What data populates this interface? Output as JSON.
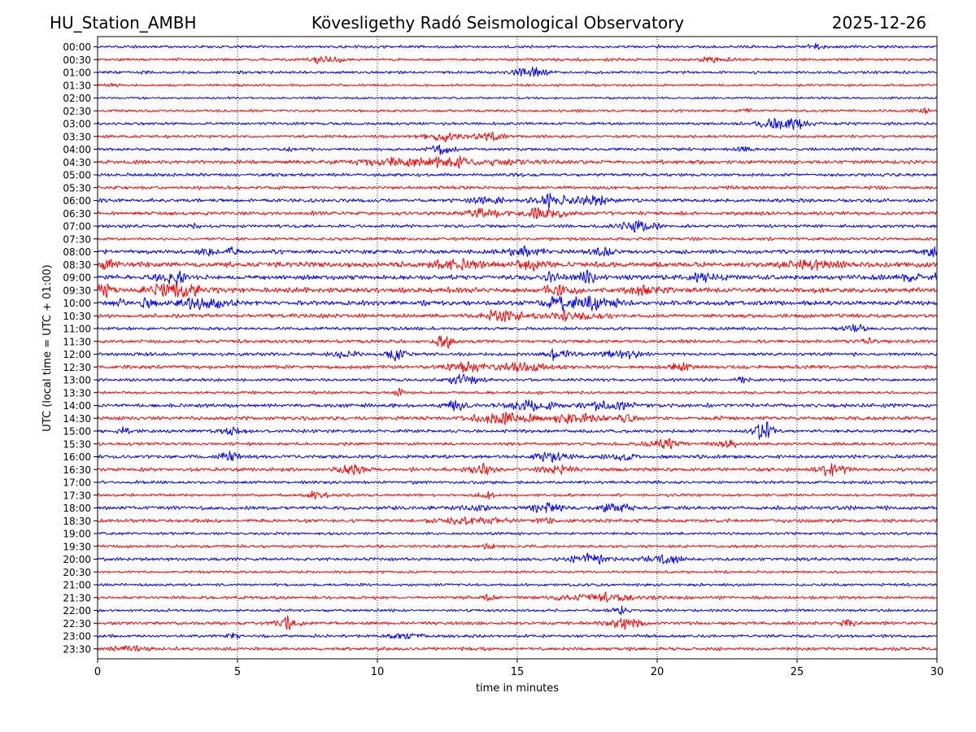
{
  "header": {
    "station": "HU_Station_AMBH",
    "title": "Kövesligethy Radó Seismological Observatory",
    "date": "2025-12-26"
  },
  "chart_data": {
    "type": "line",
    "title": "Kövesligethy Radó Seismological Observatory",
    "xlabel": "time in minutes",
    "ylabel": "UTC (local time = UTC + 01:00)",
    "xlim": [
      0,
      30
    ],
    "xticks": [
      "0",
      "5",
      "10",
      "15",
      "20",
      "25",
      "30"
    ],
    "vgrid_minutes": [
      5,
      10,
      15,
      20,
      25
    ],
    "grid_style": "dotted vertical",
    "trace_colors": [
      "#0000ff",
      "#ff0000"
    ],
    "rows": [
      {
        "label": "00:00",
        "noise": 2.2,
        "events": [
          [
            25.6,
            4,
            0.25
          ]
        ]
      },
      {
        "label": "00:30",
        "noise": 2.2,
        "events": [
          [
            8.0,
            5,
            0.7
          ],
          [
            22.0,
            4,
            0.6
          ]
        ]
      },
      {
        "label": "01:00",
        "noise": 2.2,
        "events": [
          [
            15.4,
            8,
            0.6
          ]
        ]
      },
      {
        "label": "01:30",
        "noise": 2.0,
        "events": [
          [
            0.5,
            3,
            0.3
          ]
        ]
      },
      {
        "label": "02:00",
        "noise": 1.8,
        "events": []
      },
      {
        "label": "02:30",
        "noise": 2.0,
        "events": [
          [
            23.2,
            3,
            0.2
          ],
          [
            29.5,
            3,
            0.2
          ]
        ]
      },
      {
        "label": "03:00",
        "noise": 2.2,
        "events": [
          [
            24.6,
            10,
            0.9
          ]
        ]
      },
      {
        "label": "03:30",
        "noise": 2.2,
        "events": [
          [
            12.3,
            7,
            0.7
          ],
          [
            14.0,
            5,
            0.5
          ]
        ]
      },
      {
        "label": "04:00",
        "noise": 2.4,
        "events": [
          [
            12.3,
            6,
            0.4
          ],
          [
            23.2,
            4,
            0.3
          ],
          [
            6.9,
            3,
            0.15
          ]
        ]
      },
      {
        "label": "04:30",
        "noise": 3.0,
        "events": [
          [
            12.0,
            7,
            2.5
          ]
        ]
      },
      {
        "label": "05:00",
        "noise": 2.6,
        "events": []
      },
      {
        "label": "05:30",
        "noise": 2.6,
        "events": []
      },
      {
        "label": "06:00",
        "noise": 3.0,
        "events": [
          [
            16.3,
            8,
            0.7
          ],
          [
            17.8,
            7,
            0.6
          ],
          [
            14.0,
            4,
            0.5
          ]
        ]
      },
      {
        "label": "06:30",
        "noise": 3.0,
        "events": [
          [
            13.8,
            8,
            0.6
          ],
          [
            16.0,
            7,
            0.8
          ]
        ]
      },
      {
        "label": "07:00",
        "noise": 2.6,
        "events": [
          [
            19.2,
            7,
            0.7
          ],
          [
            3.5,
            3,
            0.2
          ]
        ]
      },
      {
        "label": "07:30",
        "noise": 2.4,
        "events": []
      },
      {
        "label": "08:00",
        "noise": 3.2,
        "events": [
          [
            15.3,
            7,
            0.6
          ],
          [
            4.8,
            6,
            0.2
          ],
          [
            3.9,
            5,
            0.3
          ],
          [
            29.8,
            8,
            0.3
          ],
          [
            18.0,
            5,
            0.5
          ]
        ]
      },
      {
        "label": "08:30",
        "noise": 4.2,
        "events": [
          [
            0.3,
            8,
            0.3
          ],
          [
            12.8,
            6,
            0.9
          ],
          [
            15.5,
            6,
            0.6
          ],
          [
            25.5,
            5,
            1.2
          ]
        ]
      },
      {
        "label": "09:00",
        "noise": 3.8,
        "events": [
          [
            2.7,
            9,
            0.5
          ],
          [
            16.3,
            9,
            0.3
          ],
          [
            17.5,
            10,
            0.3
          ],
          [
            21.8,
            6,
            0.6
          ],
          [
            29.0,
            6,
            0.4
          ],
          [
            29.9,
            8,
            0.2
          ]
        ]
      },
      {
        "label": "09:30",
        "noise": 4.0,
        "events": [
          [
            0.2,
            10,
            0.3
          ],
          [
            2.8,
            9,
            1.0
          ],
          [
            16.5,
            6,
            0.6
          ],
          [
            19.5,
            5,
            0.6
          ]
        ]
      },
      {
        "label": "10:00",
        "noise": 3.6,
        "events": [
          [
            3.8,
            9,
            1.0
          ],
          [
            1.8,
            7,
            0.3
          ],
          [
            17.5,
            11,
            0.9
          ],
          [
            16.4,
            7,
            0.5
          ],
          [
            0.8,
            6,
            0.2
          ]
        ]
      },
      {
        "label": "10:30",
        "noise": 3.0,
        "events": [
          [
            14.5,
            7,
            0.8
          ],
          [
            17.0,
            6,
            1.0
          ]
        ]
      },
      {
        "label": "11:00",
        "noise": 2.4,
        "events": [
          [
            27.0,
            7,
            0.4
          ]
        ]
      },
      {
        "label": "11:30",
        "noise": 2.6,
        "events": [
          [
            12.4,
            10,
            0.3
          ],
          [
            27.5,
            3,
            0.4
          ]
        ]
      },
      {
        "label": "12:00",
        "noise": 2.6,
        "events": [
          [
            10.7,
            10,
            0.3
          ],
          [
            16.5,
            8,
            0.5
          ],
          [
            18.7,
            7,
            0.6
          ],
          [
            8.8,
            5,
            0.5
          ]
        ]
      },
      {
        "label": "12:30",
        "noise": 2.8,
        "events": [
          [
            13.2,
            7,
            0.8
          ],
          [
            15.2,
            7,
            0.8
          ],
          [
            20.9,
            7,
            0.4
          ]
        ]
      },
      {
        "label": "13:00",
        "noise": 2.4,
        "events": [
          [
            13.1,
            9,
            0.5
          ],
          [
            23.0,
            4,
            0.2
          ]
        ]
      },
      {
        "label": "13:30",
        "noise": 2.2,
        "events": [
          [
            10.8,
            5,
            0.2
          ]
        ]
      },
      {
        "label": "14:00",
        "noise": 3.0,
        "events": [
          [
            12.8,
            7,
            0.4
          ],
          [
            15.5,
            8,
            0.8
          ],
          [
            18.2,
            8,
            0.8
          ]
        ]
      },
      {
        "label": "14:30",
        "noise": 3.0,
        "events": [
          [
            14.5,
            8,
            1.0
          ],
          [
            17.0,
            6,
            1.0
          ],
          [
            19.0,
            8,
            0.3
          ]
        ]
      },
      {
        "label": "15:00",
        "noise": 2.6,
        "events": [
          [
            23.8,
            14,
            0.4
          ],
          [
            4.8,
            7,
            0.4
          ],
          [
            0.9,
            5,
            0.2
          ]
        ]
      },
      {
        "label": "15:30",
        "noise": 2.4,
        "events": [
          [
            20.3,
            7,
            0.6
          ],
          [
            22.5,
            4,
            0.5
          ]
        ]
      },
      {
        "label": "16:00",
        "noise": 2.8,
        "events": [
          [
            4.7,
            8,
            0.3
          ],
          [
            16.2,
            7,
            0.6
          ],
          [
            18.8,
            6,
            0.6
          ]
        ]
      },
      {
        "label": "16:30",
        "noise": 2.8,
        "events": [
          [
            9.0,
            8,
            0.5
          ],
          [
            13.8,
            7,
            0.5
          ],
          [
            16.4,
            6,
            0.5
          ],
          [
            26.3,
            9,
            0.5
          ]
        ]
      },
      {
        "label": "17:00",
        "noise": 2.4,
        "events": []
      },
      {
        "label": "17:30",
        "noise": 2.2,
        "events": [
          [
            7.8,
            5,
            0.4
          ],
          [
            13.9,
            6,
            0.3
          ]
        ]
      },
      {
        "label": "18:00",
        "noise": 3.0,
        "events": [
          [
            16.0,
            8,
            0.5
          ],
          [
            18.5,
            7,
            0.6
          ],
          [
            13.5,
            4,
            0.5
          ]
        ]
      },
      {
        "label": "18:30",
        "noise": 2.8,
        "events": [
          [
            13.5,
            5,
            1.2
          ],
          [
            16.0,
            4,
            0.3
          ]
        ]
      },
      {
        "label": "19:00",
        "noise": 2.2,
        "events": []
      },
      {
        "label": "19:30",
        "noise": 2.2,
        "events": [
          [
            14.0,
            4,
            0.3
          ]
        ]
      },
      {
        "label": "20:00",
        "noise": 2.6,
        "events": [
          [
            17.6,
            8,
            0.6
          ],
          [
            20.2,
            7,
            0.7
          ]
        ]
      },
      {
        "label": "20:30",
        "noise": 2.0,
        "events": []
      },
      {
        "label": "21:00",
        "noise": 2.2,
        "events": []
      },
      {
        "label": "21:30",
        "noise": 2.4,
        "events": [
          [
            18.0,
            6,
            1.5
          ],
          [
            14.0,
            3,
            0.2
          ]
        ]
      },
      {
        "label": "22:00",
        "noise": 2.2,
        "events": [
          [
            18.7,
            6,
            0.3
          ]
        ]
      },
      {
        "label": "22:30",
        "noise": 2.6,
        "events": [
          [
            18.8,
            11,
            0.5
          ],
          [
            6.8,
            8,
            0.4
          ],
          [
            26.8,
            5,
            0.3
          ]
        ]
      },
      {
        "label": "23:00",
        "noise": 2.4,
        "events": [
          [
            11.0,
            5,
            0.6
          ],
          [
            4.8,
            3,
            0.3
          ]
        ]
      },
      {
        "label": "23:30",
        "noise": 2.6,
        "events": [
          [
            1.2,
            3,
            0.5
          ]
        ]
      }
    ]
  }
}
